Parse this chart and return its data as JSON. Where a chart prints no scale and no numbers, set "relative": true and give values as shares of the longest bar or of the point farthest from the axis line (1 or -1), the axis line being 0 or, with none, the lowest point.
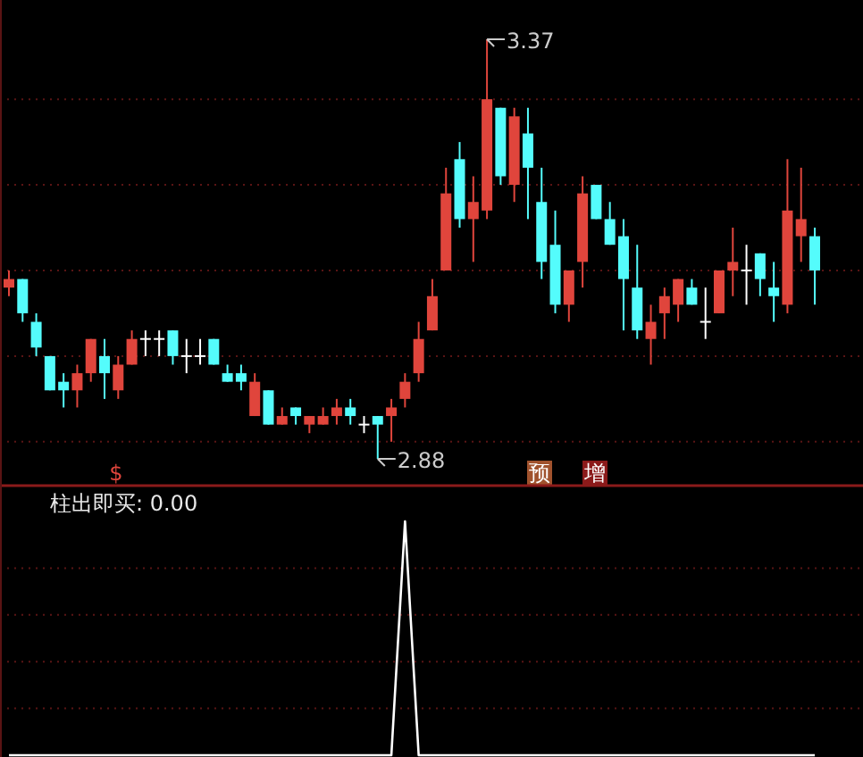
{
  "chart_data": [
    {
      "type": "candlestick",
      "categories": [
        null,
        null,
        null,
        null,
        null,
        null,
        null,
        null,
        null,
        null,
        null,
        null,
        null,
        null,
        null,
        null,
        null,
        null,
        null,
        null,
        null,
        null,
        null,
        null,
        null,
        null,
        null,
        null,
        null,
        null,
        null,
        null,
        null,
        null,
        null,
        null,
        null,
        null,
        null,
        null,
        null,
        null,
        null,
        null,
        null,
        null,
        null,
        null,
        null,
        null,
        null,
        null,
        null,
        null,
        null,
        null,
        null,
        null,
        null,
        null
      ],
      "ohlc": [
        [
          3.08,
          3.1,
          3.07,
          3.09
        ],
        [
          3.09,
          3.09,
          3.04,
          3.05
        ],
        [
          3.04,
          3.05,
          3.0,
          3.01
        ],
        [
          3.0,
          3.0,
          2.96,
          2.96
        ],
        [
          2.97,
          2.98,
          2.94,
          2.96
        ],
        [
          2.96,
          2.99,
          2.94,
          2.98
        ],
        [
          2.98,
          3.02,
          2.97,
          3.02
        ],
        [
          3.0,
          3.02,
          2.95,
          2.98
        ],
        [
          2.96,
          3.0,
          2.95,
          2.99
        ],
        [
          2.99,
          3.03,
          2.99,
          3.02
        ],
        [
          3.02,
          3.03,
          3.0,
          3.02
        ],
        [
          3.02,
          3.03,
          3.0,
          3.02
        ],
        [
          3.03,
          3.03,
          2.99,
          3.0
        ],
        [
          3.0,
          3.02,
          2.98,
          3.0
        ],
        [
          3.0,
          3.02,
          2.99,
          3.0
        ],
        [
          3.02,
          3.02,
          2.99,
          2.99
        ],
        [
          2.98,
          2.99,
          2.97,
          2.97
        ],
        [
          2.98,
          2.99,
          2.96,
          2.97
        ],
        [
          2.93,
          2.98,
          2.93,
          2.97
        ],
        [
          2.96,
          2.96,
          2.92,
          2.92
        ],
        [
          2.92,
          2.94,
          2.92,
          2.93
        ],
        [
          2.94,
          2.94,
          2.92,
          2.93
        ],
        [
          2.92,
          2.93,
          2.91,
          2.93
        ],
        [
          2.92,
          2.94,
          2.92,
          2.93
        ],
        [
          2.93,
          2.95,
          2.92,
          2.94
        ],
        [
          2.94,
          2.95,
          2.92,
          2.93
        ],
        [
          2.92,
          2.93,
          2.91,
          2.92
        ],
        [
          2.93,
          2.93,
          2.88,
          2.92
        ],
        [
          2.93,
          2.95,
          2.9,
          2.94
        ],
        [
          2.95,
          2.98,
          2.94,
          2.97
        ],
        [
          2.98,
          3.04,
          2.97,
          3.02
        ],
        [
          3.03,
          3.09,
          3.03,
          3.07
        ],
        [
          3.1,
          3.22,
          3.1,
          3.19
        ],
        [
          3.23,
          3.25,
          3.15,
          3.16
        ],
        [
          3.16,
          3.21,
          3.11,
          3.18
        ],
        [
          3.17,
          3.37,
          3.16,
          3.3
        ],
        [
          3.29,
          3.29,
          3.2,
          3.21
        ],
        [
          3.2,
          3.29,
          3.18,
          3.28
        ],
        [
          3.26,
          3.29,
          3.16,
          3.22
        ],
        [
          3.18,
          3.22,
          3.09,
          3.11
        ],
        [
          3.13,
          3.17,
          3.05,
          3.06
        ],
        [
          3.06,
          3.1,
          3.04,
          3.1
        ],
        [
          3.11,
          3.21,
          3.08,
          3.19
        ],
        [
          3.2,
          3.2,
          3.16,
          3.16
        ],
        [
          3.16,
          3.18,
          3.13,
          3.13
        ],
        [
          3.14,
          3.16,
          3.03,
          3.09
        ],
        [
          3.08,
          3.13,
          3.02,
          3.03
        ],
        [
          3.02,
          3.06,
          2.99,
          3.04
        ],
        [
          3.05,
          3.08,
          3.02,
          3.07
        ],
        [
          3.06,
          3.09,
          3.04,
          3.09
        ],
        [
          3.08,
          3.09,
          3.06,
          3.06
        ],
        [
          3.04,
          3.08,
          3.02,
          3.04
        ],
        [
          3.05,
          3.1,
          3.05,
          3.1
        ],
        [
          3.1,
          3.15,
          3.07,
          3.11
        ],
        [
          3.1,
          3.13,
          3.06,
          3.1
        ],
        [
          3.12,
          3.12,
          3.07,
          3.09
        ],
        [
          3.08,
          3.11,
          3.04,
          3.07
        ],
        [
          3.06,
          3.23,
          3.05,
          3.17
        ],
        [
          3.14,
          3.22,
          3.11,
          3.16
        ],
        [
          3.14,
          3.15,
          3.06,
          3.1
        ]
      ],
      "annotations": [
        "3.37",
        "2.88",
        "$",
        "预",
        "增"
      ],
      "ref_lines": [
        {
          "axis": "y",
          "value": 3.3,
          "color": "#5a1414",
          "line_style": "dotted"
        },
        {
          "axis": "y",
          "value": 3.2,
          "color": "#5a1414",
          "line_style": "dotted"
        },
        {
          "axis": "y",
          "value": 3.1,
          "color": "#5a1414",
          "line_style": "dotted"
        },
        {
          "axis": "y",
          "value": 3.0,
          "color": "#5a1414",
          "line_style": "dotted"
        },
        {
          "axis": "y",
          "value": 2.9,
          "color": "#5a1414",
          "line_style": "dotted"
        }
      ]
    },
    {
      "type": "line",
      "title": "柱出即买: 0.00",
      "relative": true,
      "ref_lines": [
        {
          "axis": "y",
          "value": 0.8,
          "color": "#5a1414",
          "line_style": "dotted"
        },
        {
          "axis": "y",
          "value": 0.6,
          "color": "#5a1414",
          "line_style": "dotted"
        },
        {
          "axis": "y",
          "value": 0.4,
          "color": "#5a1414",
          "line_style": "dotted"
        },
        {
          "axis": "y",
          "value": 0.2,
          "color": "#5a1414",
          "line_style": "dotted"
        }
      ],
      "categories": [
        null,
        null,
        null,
        null,
        null,
        null,
        null,
        null,
        null,
        null,
        null,
        null,
        null,
        null,
        null,
        null,
        null,
        null,
        null,
        null,
        null,
        null,
        null,
        null,
        null,
        null,
        null,
        null,
        null,
        null,
        null,
        null,
        null,
        null,
        null,
        null,
        null,
        null,
        null,
        null,
        null,
        null,
        null,
        null,
        null,
        null,
        null,
        null,
        null,
        null,
        null,
        null,
        null,
        null,
        null,
        null,
        null,
        null,
        null,
        null
      ],
      "series": [
        {
          "color": "#ffffff",
          "values": [
            0,
            0,
            0,
            0,
            0,
            0,
            0,
            0,
            0,
            0,
            0,
            0,
            0,
            0,
            0,
            0,
            0,
            0,
            0,
            0,
            0,
            0,
            0,
            0,
            0,
            0,
            0,
            0,
            0,
            1,
            0,
            0,
            0,
            0,
            0,
            0,
            0,
            0,
            0,
            0,
            0,
            0,
            0,
            0,
            0,
            0,
            0,
            0,
            0,
            0,
            0,
            0,
            0,
            0,
            0,
            0,
            0,
            0,
            0,
            0
          ]
        }
      ]
    }
  ]
}
